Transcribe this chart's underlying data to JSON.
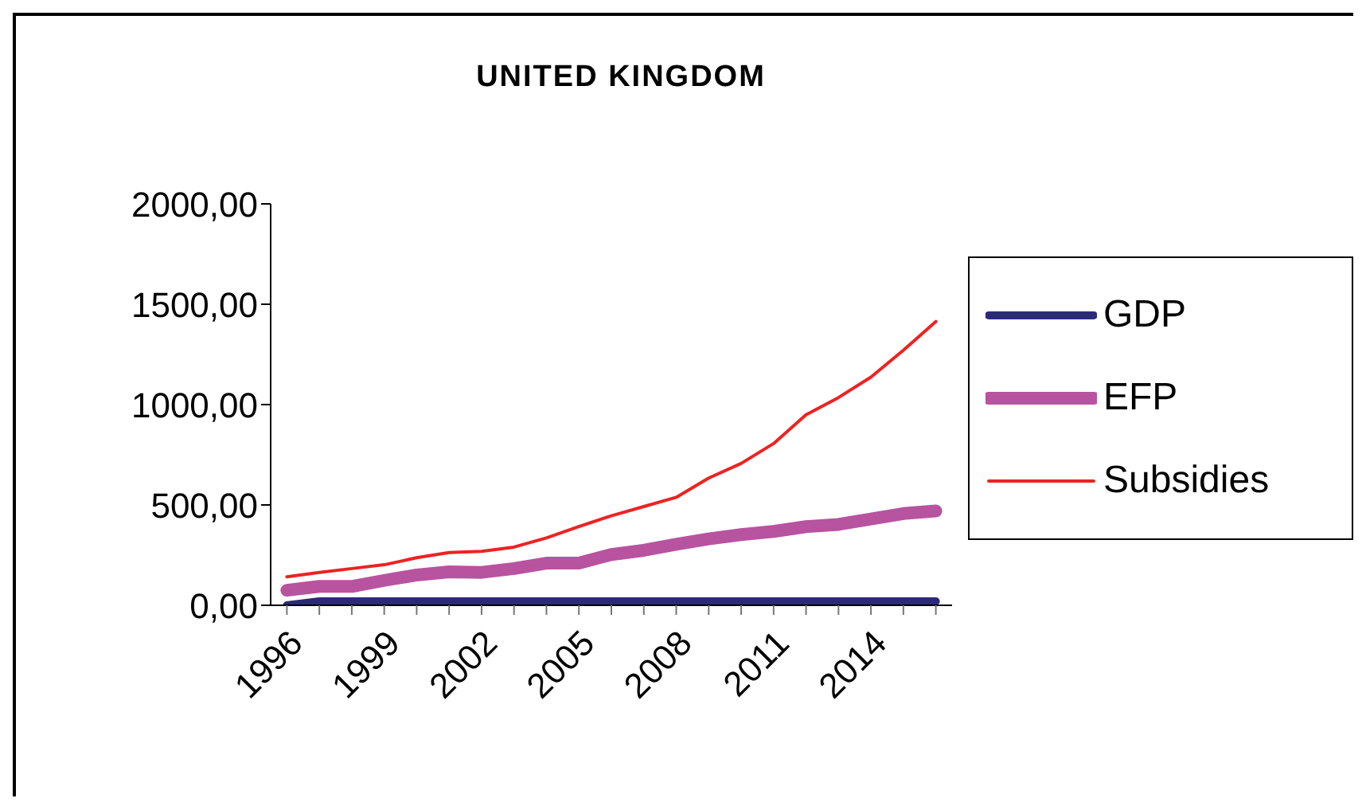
{
  "chart_data": {
    "type": "line",
    "title": "UNITED KINGDOM",
    "categories": [
      "1996",
      null,
      null,
      "1999",
      null,
      null,
      "2002",
      null,
      null,
      "2005",
      null,
      null,
      "2008",
      null,
      null,
      "2011",
      null,
      null,
      "2014",
      null,
      null
    ],
    "series": [
      {
        "name": "GDP",
        "color": "#2b2a78",
        "values": [
          0,
          20,
          20,
          20,
          20,
          20,
          20,
          20,
          20,
          20,
          20,
          20,
          20,
          20,
          20,
          20,
          20,
          20,
          20,
          20,
          20
        ]
      },
      {
        "name": "EFP",
        "color": "#b853a0",
        "values": [
          75,
          94,
          94,
          124,
          151,
          167,
          164,
          183,
          210,
          210,
          253,
          274,
          304,
          331,
          352,
          368,
          392,
          403,
          430,
          457,
          470
        ]
      },
      {
        "name": "Subsidies",
        "color": "#ee2222",
        "values": [
          142,
          164,
          183,
          202,
          237,
          263,
          269,
          290,
          336,
          392,
          446,
          492,
          538,
          634,
          707,
          806,
          949,
          1035,
          1137,
          1271,
          1414
        ]
      }
    ],
    "ylim": [
      0,
      2000
    ],
    "yticks": [
      {
        "value": 0,
        "label": "0,00"
      },
      {
        "value": 500,
        "label": "500,00"
      },
      {
        "value": 1000,
        "label": "1000,00"
      },
      {
        "value": 1500,
        "label": "1500,00"
      },
      {
        "value": 2000,
        "label": "2000,00"
      }
    ],
    "grid": false,
    "legend": "right",
    "marker": "none",
    "line_style": "solid"
  }
}
